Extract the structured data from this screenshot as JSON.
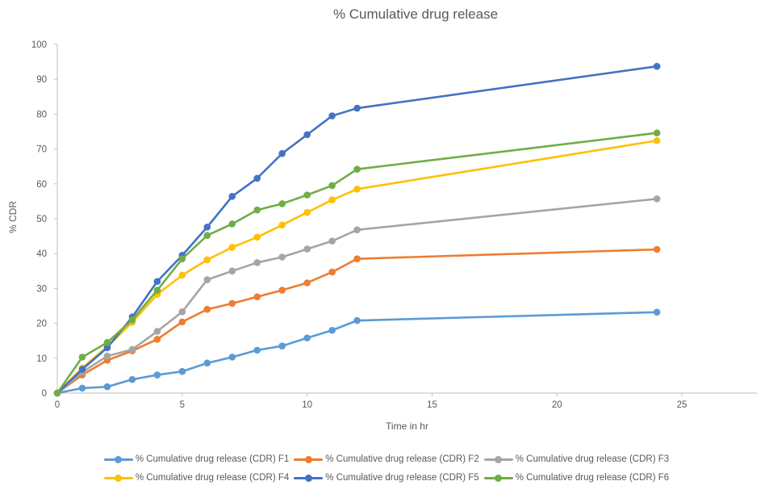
{
  "chart": {
    "title": "% Cumulative drug release",
    "xlabel": "Time in hr",
    "ylabel": "% CDR"
  },
  "colors": {
    "text": "#595959",
    "axis": "#BFBFBF",
    "background": "#FFFFFF"
  },
  "chart_data": {
    "type": "line",
    "title": "% Cumulative drug release",
    "xlabel": "Time in hr",
    "ylabel": "% CDR",
    "xlim": [
      0,
      28
    ],
    "ylim": [
      0,
      100
    ],
    "x_ticks": [
      0,
      5,
      10,
      15,
      20,
      25
    ],
    "y_ticks": [
      0,
      10,
      20,
      30,
      40,
      50,
      60,
      70,
      80,
      90,
      100
    ],
    "grid": false,
    "marker": "circle",
    "legend_position": "bottom",
    "x": [
      0,
      1,
      2,
      3,
      4,
      5,
      6,
      7,
      8,
      9,
      10,
      11,
      12,
      24
    ],
    "series": [
      {
        "name": "% Cumulative drug release (CDR) F1",
        "color": "#5B9BD5",
        "values": [
          0,
          1.4,
          1.8,
          3.9,
          5.2,
          6.2,
          8.6,
          10.3,
          12.3,
          13.5,
          15.8,
          18.0,
          20.8,
          23.2
        ]
      },
      {
        "name": "% Cumulative drug release (CDR) F2",
        "color": "#ED7D31",
        "values": [
          0,
          5.2,
          9.4,
          12.1,
          15.4,
          20.4,
          24.0,
          25.7,
          27.6,
          29.5,
          31.6,
          34.7,
          38.5,
          41.2
        ]
      },
      {
        "name": "% Cumulative drug release (CDR) F3",
        "color": "#A5A5A5",
        "values": [
          0,
          6.0,
          10.6,
          12.5,
          17.7,
          23.3,
          32.5,
          35.0,
          37.4,
          39.0,
          41.3,
          43.6,
          46.8,
          55.7
        ]
      },
      {
        "name": "% Cumulative drug release (CDR) F4",
        "color": "#FFC000",
        "values": [
          0,
          7.2,
          13.3,
          20.3,
          28.3,
          33.8,
          38.2,
          41.8,
          44.7,
          48.2,
          51.8,
          55.4,
          58.5,
          72.4
        ]
      },
      {
        "name": "% Cumulative drug release (CDR) F5",
        "color": "#4472C4",
        "values": [
          0,
          6.8,
          13.0,
          21.8,
          32.0,
          39.5,
          47.6,
          56.4,
          61.6,
          68.7,
          74.1,
          79.5,
          81.7,
          93.7
        ]
      },
      {
        "name": "% Cumulative drug release (CDR) F6",
        "color": "#70AD47",
        "values": [
          0,
          10.3,
          14.5,
          21.0,
          29.5,
          38.5,
          45.2,
          48.5,
          52.5,
          54.3,
          56.8,
          59.5,
          64.2,
          74.6
        ]
      }
    ]
  }
}
